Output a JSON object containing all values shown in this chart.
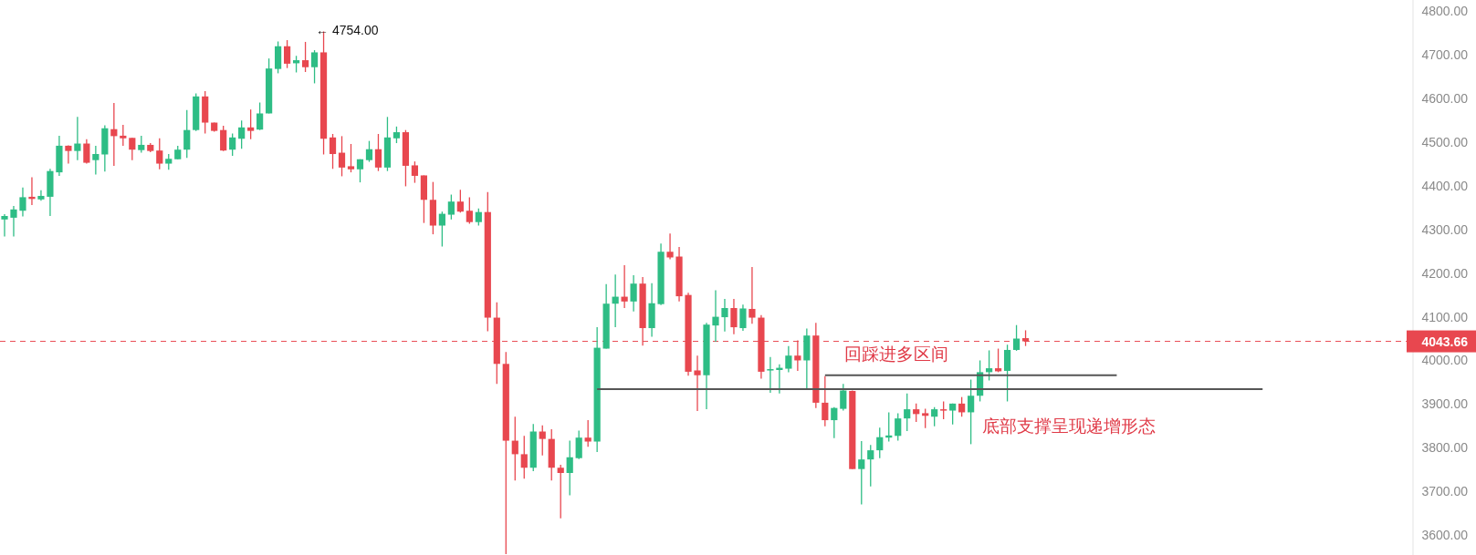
{
  "chart_data": {
    "type": "candlestick",
    "categories": [
      null,
      null,
      null,
      null,
      null,
      null,
      null,
      null,
      null,
      null,
      null,
      null,
      null,
      null,
      null,
      null,
      null,
      null,
      null,
      null,
      null,
      null,
      null,
      null,
      null,
      null,
      null,
      null,
      null,
      null,
      null,
      null,
      null,
      null,
      null,
      null,
      null,
      null,
      null,
      null,
      null,
      null,
      null,
      null,
      null,
      null,
      null,
      null,
      null,
      null,
      null,
      null,
      null,
      null,
      null,
      null,
      null,
      null,
      null,
      null,
      null,
      null,
      null,
      null,
      null,
      null,
      null,
      null,
      null,
      null,
      null,
      null,
      null,
      null,
      null,
      null,
      null,
      null,
      null,
      null,
      null,
      null,
      null,
      null,
      null,
      null,
      null,
      null,
      null,
      null,
      null,
      null,
      null,
      null,
      null,
      null,
      null,
      null,
      null,
      null,
      null,
      null,
      null,
      null,
      null,
      null,
      null,
      null,
      null,
      null,
      null,
      null,
      null,
      null,
      null,
      null,
      null,
      null,
      null,
      null,
      null,
      null,
      null,
      null,
      null,
      null,
      null,
      null,
      null,
      null,
      null,
      null,
      null,
      null,
      null,
      null,
      null,
      null,
      null,
      null,
      null,
      null,
      null,
      null,
      null,
      null,
      null,
      null,
      null,
      null,
      null,
      null,
      null,
      null,
      null
    ],
    "ohlc": [
      [
        4323,
        4335,
        4284,
        4331
      ],
      [
        4327,
        4354,
        4284,
        4346
      ],
      [
        4343,
        4396,
        4330,
        4374
      ],
      [
        4375,
        4420,
        4356,
        4370
      ],
      [
        4369,
        4390,
        4366,
        4377
      ],
      [
        4375,
        4439,
        4331,
        4434
      ],
      [
        4431,
        4515,
        4423,
        4492
      ],
      [
        4492,
        4493,
        4451,
        4480
      ],
      [
        4480,
        4558,
        4459,
        4497
      ],
      [
        4497,
        4507,
        4451,
        4453
      ],
      [
        4459,
        4492,
        4426,
        4473
      ],
      [
        4472,
        4539,
        4433,
        4532
      ],
      [
        4530,
        4590,
        4446,
        4514
      ],
      [
        4515,
        4540,
        4492,
        4509
      ],
      [
        4510,
        4510,
        4459,
        4483
      ],
      [
        4482,
        4515,
        4476,
        4494
      ],
      [
        4494,
        4498,
        4477,
        4480
      ],
      [
        4481,
        4509,
        4438,
        4451
      ],
      [
        4451,
        4473,
        4437,
        4462
      ],
      [
        4461,
        4492,
        4461,
        4483
      ],
      [
        4483,
        4574,
        4464,
        4528
      ],
      [
        4528,
        4612,
        4526,
        4605
      ],
      [
        4605,
        4617,
        4520,
        4545
      ],
      [
        4545,
        4545,
        4524,
        4526
      ],
      [
        4528,
        4538,
        4480,
        4481
      ],
      [
        4483,
        4520,
        4469,
        4511
      ],
      [
        4508,
        4550,
        4485,
        4534
      ],
      [
        4534,
        4575,
        4507,
        4526
      ],
      [
        4529,
        4591,
        4528,
        4566
      ],
      [
        4566,
        4692,
        4566,
        4669
      ],
      [
        4668,
        4731,
        4658,
        4720
      ],
      [
        4720,
        4734,
        4670,
        4680
      ],
      [
        4681,
        4698,
        4660,
        4688
      ],
      [
        4688,
        4730,
        4661,
        4672
      ],
      [
        4672,
        4711,
        4635,
        4706
      ],
      [
        4706,
        4754,
        4472,
        4508
      ],
      [
        4511,
        4519,
        4439,
        4473
      ],
      [
        4476,
        4514,
        4422,
        4442
      ],
      [
        4445,
        4496,
        4431,
        4438
      ],
      [
        4438,
        4461,
        4408,
        4461
      ],
      [
        4459,
        4503,
        4455,
        4484
      ],
      [
        4484,
        4519,
        4434,
        4442
      ],
      [
        4442,
        4558,
        4434,
        4511
      ],
      [
        4509,
        4536,
        4498,
        4523
      ],
      [
        4523,
        4528,
        4399,
        4446
      ],
      [
        4447,
        4456,
        4407,
        4423
      ],
      [
        4424,
        4424,
        4315,
        4368
      ],
      [
        4368,
        4409,
        4289,
        4309
      ],
      [
        4309,
        4341,
        4261,
        4336
      ],
      [
        4334,
        4380,
        4323,
        4364
      ],
      [
        4364,
        4391,
        4339,
        4341
      ],
      [
        4343,
        4374,
        4313,
        4317
      ],
      [
        4317,
        4348,
        4309,
        4340
      ],
      [
        4340,
        4386,
        4067,
        4098
      ],
      [
        4098,
        4133,
        3946,
        3992
      ],
      [
        3992,
        4019,
        3556,
        3816
      ],
      [
        3816,
        3871,
        3725,
        3785
      ],
      [
        3785,
        3827,
        3729,
        3754
      ],
      [
        3754,
        3854,
        3746,
        3837
      ],
      [
        3837,
        3851,
        3782,
        3820
      ],
      [
        3820,
        3842,
        3725,
        3754
      ],
      [
        3754,
        3761,
        3638,
        3742
      ],
      [
        3742,
        3816,
        3691,
        3778
      ],
      [
        3776,
        3839,
        3774,
        3823
      ],
      [
        3823,
        3863,
        3802,
        3814
      ],
      [
        3814,
        4076,
        3790,
        4029
      ],
      [
        4027,
        4175,
        4027,
        4130
      ],
      [
        4130,
        4197,
        4076,
        4146
      ],
      [
        4146,
        4218,
        4120,
        4135
      ],
      [
        4135,
        4195,
        4112,
        4176
      ],
      [
        4176,
        4191,
        4034,
        4074
      ],
      [
        4074,
        4177,
        4054,
        4131
      ],
      [
        4129,
        4268,
        4127,
        4249
      ],
      [
        4249,
        4291,
        4232,
        4236
      ],
      [
        4238,
        4260,
        4135,
        4147
      ],
      [
        4150,
        4155,
        3965,
        3974
      ],
      [
        3977,
        4011,
        3884,
        3966
      ],
      [
        3966,
        4086,
        3888,
        4082
      ],
      [
        4080,
        4161,
        4043,
        4100
      ],
      [
        4099,
        4141,
        4066,
        4120
      ],
      [
        4120,
        4141,
        4060,
        4076
      ],
      [
        4074,
        4128,
        4068,
        4119
      ],
      [
        4118,
        4214,
        4084,
        4098
      ],
      [
        4098,
        4104,
        3958,
        3974
      ],
      [
        3977,
        4008,
        3926,
        3980
      ],
      [
        3978,
        3991,
        3924,
        3983
      ],
      [
        3981,
        4033,
        3973,
        4011
      ],
      [
        4011,
        4046,
        3976,
        4000
      ],
      [
        4000,
        4073,
        3936,
        4057
      ],
      [
        4057,
        4086,
        3891,
        3903
      ],
      [
        3903,
        3964,
        3849,
        3863
      ],
      [
        3863,
        3893,
        3822,
        3891
      ],
      [
        3889,
        3946,
        3885,
        3931
      ],
      [
        3930,
        3931,
        3751,
        3751
      ],
      [
        3751,
        3815,
        3670,
        3773
      ],
      [
        3773,
        3806,
        3711,
        3794
      ],
      [
        3794,
        3846,
        3776,
        3824
      ],
      [
        3823,
        3881,
        3814,
        3828
      ],
      [
        3827,
        3879,
        3816,
        3867
      ],
      [
        3867,
        3924,
        3838,
        3888
      ],
      [
        3888,
        3901,
        3859,
        3877
      ],
      [
        3879,
        3889,
        3845,
        3873
      ],
      [
        3871,
        3893,
        3849,
        3888
      ],
      [
        3888,
        3906,
        3865,
        3885
      ],
      [
        3885,
        3901,
        3853,
        3901
      ],
      [
        3901,
        3916,
        3871,
        3881
      ],
      [
        3881,
        3956,
        3808,
        3919
      ],
      [
        3919,
        4000,
        3906,
        3973
      ],
      [
        3973,
        4023,
        3954,
        3982
      ],
      [
        3982,
        4027,
        3973,
        3975
      ],
      [
        3976,
        4036,
        3906,
        4024
      ],
      [
        4024,
        4081,
        4022,
        4050
      ],
      [
        4051,
        4069,
        4033,
        4043.66
      ],
      null,
      null,
      null,
      null,
      null,
      null,
      null,
      null,
      null,
      null,
      null,
      null,
      null,
      null,
      null,
      null,
      null,
      null,
      null,
      null,
      null,
      null,
      null,
      null,
      null,
      null,
      null,
      null,
      null,
      null,
      null,
      null,
      null,
      null,
      null,
      null,
      null,
      null,
      null,
      null,
      null,
      null
    ],
    "colors": [
      "#2ebd85",
      "#2ebd85",
      "#2ebd85",
      "#e8474f",
      "#2ebd85",
      "#2ebd85",
      "#2ebd85",
      "#e8474f",
      "#2ebd85",
      "#e8474f",
      "#2ebd85",
      "#2ebd85",
      "#e8474f",
      "#e8474f",
      "#e8474f",
      "#2ebd85",
      "#e8474f",
      "#e8474f",
      "#2ebd85",
      "#2ebd85",
      "#2ebd85",
      "#2ebd85",
      "#e8474f",
      "#e8474f",
      "#e8474f",
      "#2ebd85",
      "#2ebd85",
      "#e8474f",
      "#2ebd85",
      "#2ebd85",
      "#2ebd85",
      "#e8474f",
      "#2ebd85",
      "#e8474f",
      "#2ebd85",
      "#e8474f",
      "#e8474f",
      "#e8474f",
      "#e8474f",
      "#2ebd85",
      "#2ebd85",
      "#e8474f",
      "#2ebd85",
      "#2ebd85",
      "#e8474f",
      "#e8474f",
      "#e8474f",
      "#e8474f",
      "#2ebd85",
      "#2ebd85",
      "#e8474f",
      "#e8474f",
      "#2ebd85",
      "#e8474f",
      "#e8474f",
      "#e8474f",
      "#e8474f",
      "#e8474f",
      "#2ebd85",
      "#e8474f",
      "#e8474f",
      "#e8474f",
      "#2ebd85",
      "#2ebd85",
      "#e8474f",
      "#2ebd85",
      "#2ebd85",
      "#2ebd85",
      "#e8474f",
      "#2ebd85",
      "#e8474f",
      "#2ebd85",
      "#2ebd85",
      "#e8474f",
      "#e8474f",
      "#e8474f",
      "#e8474f",
      "#2ebd85",
      "#2ebd85",
      "#2ebd85",
      "#e8474f",
      "#2ebd85",
      "#e8474f",
      "#e8474f",
      "#2ebd85",
      "#2ebd85",
      "#2ebd85",
      "#e8474f",
      "#2ebd85",
      "#e8474f",
      "#e8474f",
      "#2ebd85",
      "#2ebd85",
      "#e8474f",
      "#2ebd85",
      "#2ebd85",
      "#2ebd85",
      "#2ebd85",
      "#2ebd85",
      "#2ebd85",
      "#e8474f",
      "#e8474f",
      "#2ebd85",
      "#e8474f",
      "#2ebd85",
      "#e8474f",
      "#2ebd85",
      "#2ebd85",
      "#2ebd85",
      "#e8474f",
      "#2ebd85",
      "#2ebd85",
      "#e8474f",
      null,
      null,
      null,
      null,
      null,
      null,
      null,
      null,
      null,
      null,
      null,
      null,
      null,
      null,
      null,
      null,
      null,
      null,
      null,
      null,
      null,
      null,
      null,
      null,
      null,
      null,
      null,
      null,
      null,
      null,
      null,
      null,
      null,
      null,
      null,
      null,
      null,
      null,
      null,
      null,
      null,
      null
    ],
    "series": [
      {
        "type": "line",
        "color": "#555555",
        "values": [
          null,
          null,
          null,
          null,
          null,
          null,
          null,
          null,
          null,
          null,
          null,
          null,
          null,
          null,
          null,
          null,
          null,
          null,
          null,
          null,
          null,
          null,
          null,
          null,
          null,
          null,
          null,
          null,
          null,
          null,
          null,
          null,
          null,
          null,
          null,
          null,
          null,
          null,
          null,
          null,
          null,
          null,
          null,
          null,
          null,
          null,
          null,
          null,
          null,
          null,
          null,
          null,
          null,
          null,
          null,
          null,
          null,
          null,
          null,
          null,
          null,
          null,
          null,
          null,
          null,
          3934,
          3934,
          3934,
          3934,
          3934,
          3934,
          3934,
          3934,
          3934,
          3934,
          3934,
          3934,
          3934,
          3934,
          3934,
          3934,
          3934,
          3934,
          3934,
          3934,
          3934,
          3934,
          3934,
          3934,
          3934,
          3934,
          3934,
          3934,
          3934,
          3934,
          3934,
          3934,
          3934,
          3934,
          3934,
          3934,
          3934,
          3934,
          3934,
          3934,
          3934,
          3934,
          3934,
          3934,
          3934,
          3934,
          3934,
          3934,
          3934,
          3934,
          3934,
          3934,
          3934,
          3934,
          3934,
          3934,
          3934,
          3934,
          3934,
          3934,
          3934,
          3934,
          3934,
          3934,
          3934,
          3934,
          3934,
          3934,
          3934,
          3934,
          3934,
          3934,
          3934,
          3934,
          null,
          null,
          null,
          null,
          null,
          null,
          null,
          null,
          null,
          null,
          null,
          null,
          null,
          null,
          null,
          null
        ]
      },
      {
        "type": "line",
        "color": "#555555",
        "values": [
          null,
          null,
          null,
          null,
          null,
          null,
          null,
          null,
          null,
          null,
          null,
          null,
          null,
          null,
          null,
          null,
          null,
          null,
          null,
          null,
          null,
          null,
          null,
          null,
          null,
          null,
          null,
          null,
          null,
          null,
          null,
          null,
          null,
          null,
          null,
          null,
          null,
          null,
          null,
          null,
          null,
          null,
          null,
          null,
          null,
          null,
          null,
          null,
          null,
          null,
          null,
          null,
          null,
          null,
          null,
          null,
          null,
          null,
          null,
          null,
          null,
          null,
          null,
          null,
          null,
          null,
          null,
          null,
          null,
          null,
          null,
          null,
          null,
          null,
          null,
          null,
          null,
          null,
          null,
          null,
          null,
          null,
          null,
          null,
          null,
          null,
          null,
          null,
          null,
          null,
          3966,
          3966,
          3966,
          3966,
          3966,
          3966,
          3966,
          3966,
          3966,
          3966,
          3966,
          3966,
          3966,
          3966,
          3966,
          3966,
          3966,
          3966,
          3966,
          3966,
          3966,
          3966,
          3966,
          3966,
          3966,
          3966,
          3966,
          3966,
          3966,
          3966,
          3966,
          3966,
          3966,
          null,
          null,
          null,
          null,
          null,
          null,
          null,
          null,
          null,
          null,
          null,
          null,
          null,
          null,
          null,
          null,
          null,
          null,
          null,
          null,
          null,
          null,
          null,
          null,
          null,
          null,
          null,
          null,
          null,
          null,
          null,
          null
        ]
      }
    ],
    "ref_lines": [
      {
        "axis": "y",
        "value": 4043.66,
        "label": "4043.66",
        "color": "#e8474f",
        "line_style": "dashed"
      }
    ],
    "annotations": [
      "← 4754.00",
      "回踩进多区间",
      "底部支撑呈现递增形态"
    ],
    "ylim": [
      3554,
      4826
    ],
    "yticks": [
      {
        "value": 3600,
        "label": "3600.00"
      },
      {
        "value": 3700,
        "label": "3700.00"
      },
      {
        "value": 3800,
        "label": "3800.00"
      },
      {
        "value": 3900,
        "label": "3900.00"
      },
      {
        "value": 4000,
        "label": "4000.00"
      },
      {
        "value": 4100,
        "label": "4100.00"
      },
      {
        "value": 4200,
        "label": "4200.00"
      },
      {
        "value": 4300,
        "label": "4300.00"
      },
      {
        "value": 4400,
        "label": "4400.00"
      },
      {
        "value": 4500,
        "label": "4500.00"
      },
      {
        "value": 4600,
        "label": "4600.00"
      },
      {
        "value": 4700,
        "label": "4700.00"
      },
      {
        "value": 4800,
        "label": "4800.00"
      }
    ]
  }
}
